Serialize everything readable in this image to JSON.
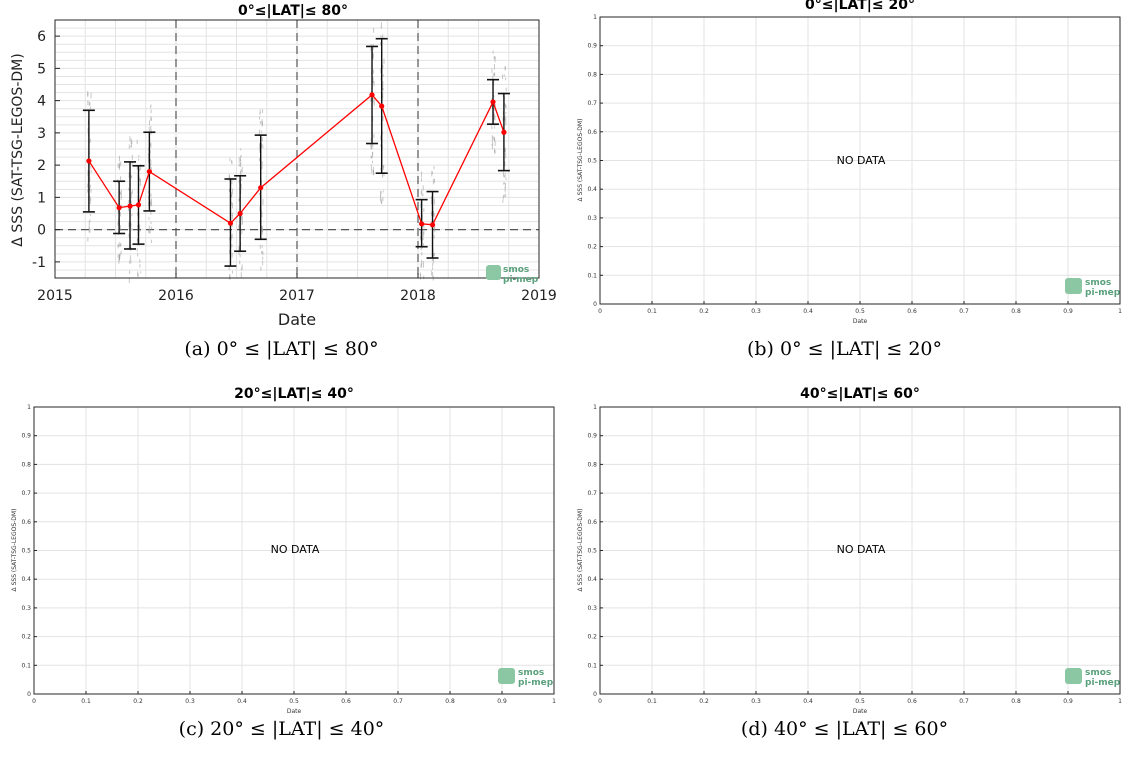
{
  "panels": [
    {
      "id": "a",
      "title": "0°≤|LAT|≤ 80°",
      "caption": "(a) 0° ≤ |LAT| ≤ 80°",
      "xlabel": "Date",
      "ylabel": "Δ SSS (SAT-TSG-LEGOS-DM)",
      "logo": {
        "line1": "smos",
        "line2": "pi-mep"
      }
    },
    {
      "id": "b",
      "title": "0°≤|LAT|≤ 20°",
      "caption": "(b) 0° ≤ |LAT| ≤ 20°",
      "xlabel": "Date",
      "ylabel": "Δ SSS (SAT-TSG-LEGOS-DM)",
      "message": "NO DATA",
      "logo": {
        "line1": "smos",
        "line2": "pi-mep"
      }
    },
    {
      "id": "c",
      "title": "20°≤|LAT|≤ 40°",
      "caption": "(c) 20° ≤ |LAT| ≤ 40°",
      "xlabel": "Date",
      "ylabel": "Δ SSS (SAT-TSG-LEGOS-DM)",
      "message": "NO DATA",
      "logo": {
        "line1": "smos",
        "line2": "pi-mep"
      }
    },
    {
      "id": "d",
      "title": "40°≤|LAT|≤ 60°",
      "caption": "(d) 40° ≤ |LAT| ≤ 60°",
      "xlabel": "Date",
      "ylabel": "Δ SSS (SAT-TSG-LEGOS-DM)",
      "message": "NO DATA",
      "logo": {
        "line1": "smos",
        "line2": "pi-mep"
      }
    }
  ],
  "chart_data": [
    {
      "panel": "a",
      "type": "line",
      "title": "0°≤|LAT|≤ 80°",
      "xlabel": "Date",
      "ylabel": "Δ SSS (SAT-TSG-LEGOS-DM)",
      "x_axis": "date (decimal year)",
      "xlim": [
        2015,
        2019
      ],
      "ylim": [
        -1.5,
        6.5
      ],
      "xticks": [
        2015,
        2016,
        2017,
        2018,
        2019
      ],
      "yticks": [
        -1,
        0,
        1,
        2,
        3,
        4,
        5,
        6
      ],
      "grid": true,
      "series_color": "#ff0000",
      "vertical_dashed_lines_x": [
        2016,
        2017,
        2018
      ],
      "horizontal_dashed_line_y": 0,
      "points": [
        {
          "x": 2015.28,
          "y": 2.13,
          "err_low": 0.55,
          "err_high": 3.7
        },
        {
          "x": 2015.53,
          "y": 0.68,
          "err_low": -0.12,
          "err_high": 1.5
        },
        {
          "x": 2015.62,
          "y": 0.73,
          "err_low": -0.6,
          "err_high": 2.1
        },
        {
          "x": 2015.69,
          "y": 0.77,
          "err_low": -0.45,
          "err_high": 1.98
        },
        {
          "x": 2015.78,
          "y": 1.8,
          "err_low": 0.58,
          "err_high": 3.02
        },
        {
          "x": 2016.45,
          "y": 0.2,
          "err_low": -1.13,
          "err_high": 1.57
        },
        {
          "x": 2016.53,
          "y": 0.5,
          "err_low": -0.67,
          "err_high": 1.67
        },
        {
          "x": 2016.7,
          "y": 1.3,
          "err_low": -0.3,
          "err_high": 2.93
        },
        {
          "x": 2017.62,
          "y": 4.18,
          "err_low": 2.67,
          "err_high": 5.68
        },
        {
          "x": 2017.7,
          "y": 3.83,
          "err_low": 1.75,
          "err_high": 5.92
        },
        {
          "x": 2018.03,
          "y": 0.18,
          "err_low": -0.53,
          "err_high": 0.93
        },
        {
          "x": 2018.12,
          "y": 0.15,
          "err_low": -0.88,
          "err_high": 1.18
        },
        {
          "x": 2018.62,
          "y": 3.96,
          "err_low": 3.27,
          "err_high": 4.65
        },
        {
          "x": 2018.71,
          "y": 3.02,
          "err_low": 1.83,
          "err_high": 4.22
        }
      ]
    },
    {
      "panel": "b",
      "type": "scatter",
      "title": "0°≤|LAT|≤ 20°",
      "xlabel": "Date",
      "ylabel": "Δ SSS (SAT-TSG-LEGOS-DM)",
      "xlim": [
        0,
        1
      ],
      "ylim": [
        0,
        1
      ],
      "xticks": [
        "0",
        "0.1",
        "0.2",
        "0.3",
        "0.4",
        "0.5",
        "0.6",
        "0.7",
        "0.8",
        "0.9",
        "1"
      ],
      "yticks": [
        "0",
        "0.1",
        "0.2",
        "0.3",
        "0.4",
        "0.5",
        "0.6",
        "0.7",
        "0.8",
        "0.9",
        "1"
      ],
      "grid": true,
      "annotation": "NO DATA",
      "values": []
    },
    {
      "panel": "c",
      "type": "scatter",
      "title": "20°≤|LAT|≤ 40°",
      "xlabel": "Date",
      "ylabel": "Δ SSS (SAT-TSG-LEGOS-DM)",
      "xlim": [
        0,
        1
      ],
      "ylim": [
        0,
        1
      ],
      "xticks": [
        "0",
        "0.1",
        "0.2",
        "0.3",
        "0.4",
        "0.5",
        "0.6",
        "0.7",
        "0.8",
        "0.9",
        "1"
      ],
      "yticks": [
        "0",
        "0.1",
        "0.2",
        "0.3",
        "0.4",
        "0.5",
        "0.6",
        "0.7",
        "0.8",
        "0.9",
        "1"
      ],
      "grid": true,
      "annotation": "NO DATA",
      "values": []
    },
    {
      "panel": "d",
      "type": "scatter",
      "title": "40°≤|LAT|≤ 60°",
      "xlabel": "Date",
      "ylabel": "Δ SSS (SAT-TSG-LEGOS-DM)",
      "xlim": [
        0,
        1
      ],
      "ylim": [
        0,
        1
      ],
      "xticks": [
        "0",
        "0.1",
        "0.2",
        "0.3",
        "0.4",
        "0.5",
        "0.6",
        "0.7",
        "0.8",
        "0.9",
        "1"
      ],
      "yticks": [
        "0",
        "0.1",
        "0.2",
        "0.3",
        "0.4",
        "0.5",
        "0.6",
        "0.7",
        "0.8",
        "0.9",
        "1"
      ],
      "grid": true,
      "annotation": "NO DATA",
      "values": []
    }
  ]
}
